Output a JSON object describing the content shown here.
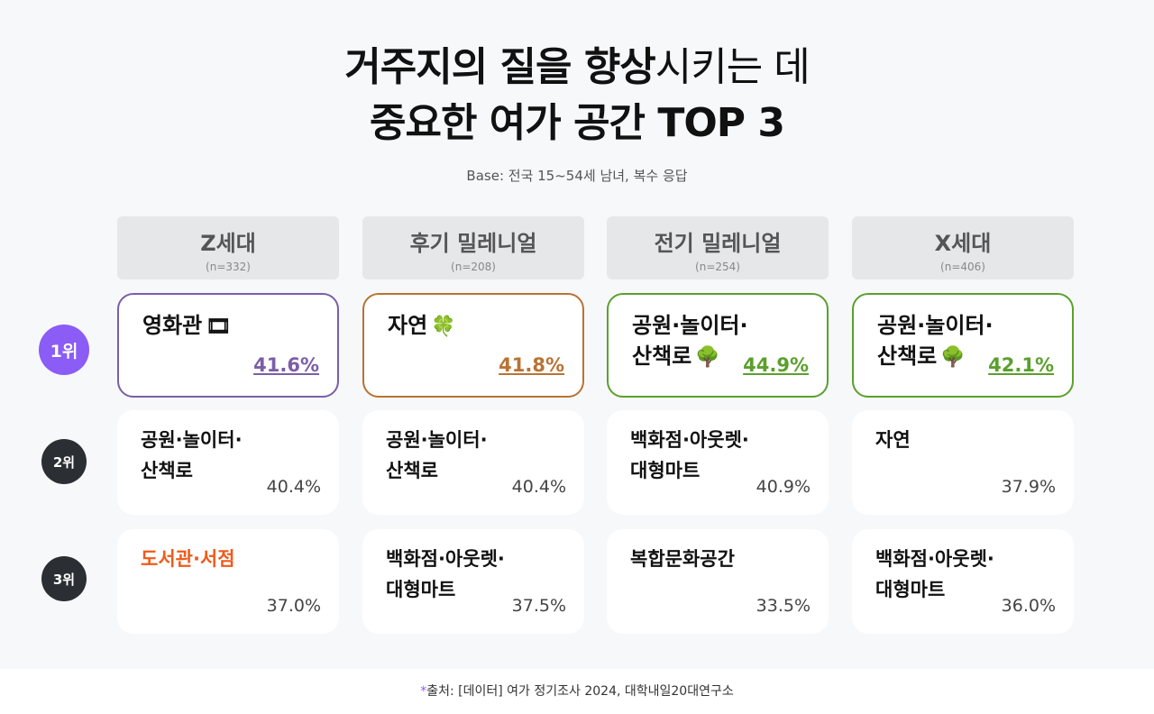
{
  "title": {
    "line1_bold": "거주지의 질을 향상",
    "line1_light": "시키는 데",
    "line2": "중요한 여가 공간 TOP 3"
  },
  "base": "Base: 전국 15~54세 남녀, 복수 응답",
  "columns": [
    {
      "name": "Z세대",
      "n": "(n=332)"
    },
    {
      "name": "후기 밀레니얼",
      "n": "(n=208)"
    },
    {
      "name": "전기 밀레니얼",
      "n": "(n=254)"
    },
    {
      "name": "X세대",
      "n": "(n=406)"
    }
  ],
  "ranks": [
    "1위",
    "2위",
    "3위"
  ],
  "rows": [
    [
      {
        "label": "영화관",
        "pct": "41.6%",
        "emoji": "🎞",
        "color": "#7b5ea7"
      },
      {
        "label": "자연",
        "pct": "41.8%",
        "emoji": "🍀",
        "color": "#b87333"
      },
      {
        "label": "공원·놀이터·\n산책로",
        "pct": "44.9%",
        "emoji": "🌳",
        "color": "#5aa02c"
      },
      {
        "label": "공원·놀이터·\n산책로",
        "pct": "42.1%",
        "emoji": "🌳",
        "color": "#5aa02c"
      }
    ],
    [
      {
        "label": "공원·놀이터·\n산책로",
        "pct": "40.4%"
      },
      {
        "label": "공원·놀이터·\n산책로",
        "pct": "40.4%"
      },
      {
        "label": "백화점·아웃렛·\n대형마트",
        "pct": "40.9%"
      },
      {
        "label": "자연",
        "pct": "37.9%"
      }
    ],
    [
      {
        "label": "도서관·서점",
        "pct": "37.0%",
        "highlight": "#f05a1a"
      },
      {
        "label": "백화점·아웃렛·\n대형마트",
        "pct": "37.5%"
      },
      {
        "label": "복합문화공간",
        "pct": "33.5%"
      },
      {
        "label": "백화점·아웃렛·\n대형마트",
        "pct": "36.0%"
      }
    ]
  ],
  "footer": {
    "star": "*",
    "text": "출처: [데이터] 여가 정기조사 2024, 대학내일20대연구소"
  }
}
